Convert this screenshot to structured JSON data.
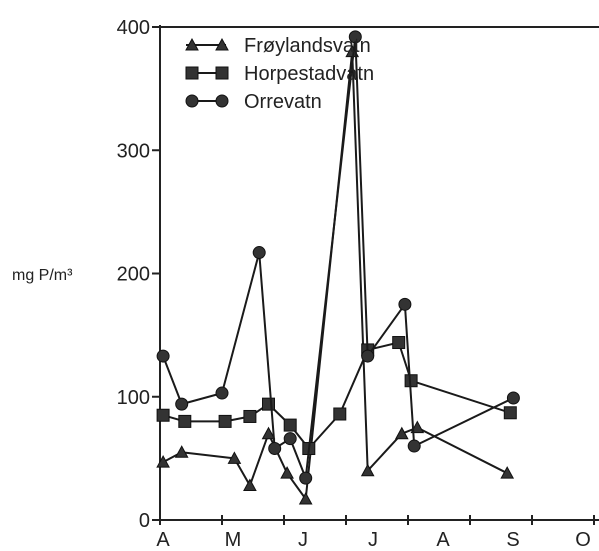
{
  "chart_data": {
    "type": "line",
    "ylabel": "mg P/m³",
    "ylim": [
      0,
      400
    ],
    "yticks": [
      0,
      100,
      200,
      300,
      400
    ],
    "month_labels": [
      "A",
      "M",
      "J",
      "J",
      "A",
      "S",
      "O"
    ],
    "x_axis": "months April–October (positions in approximate months from start of April)",
    "grid": false,
    "legend_position": "top-left",
    "series": [
      {
        "name": "Frøylandsvatn",
        "marker": "triangle",
        "points": [
          {
            "x": 0.05,
            "y": 47
          },
          {
            "x": 0.35,
            "y": 55
          },
          {
            "x": 1.2,
            "y": 50
          },
          {
            "x": 1.45,
            "y": 28
          },
          {
            "x": 1.75,
            "y": 70
          },
          {
            "x": 2.05,
            "y": 38
          },
          {
            "x": 2.35,
            "y": 17
          },
          {
            "x": 3.1,
            "y": 380
          },
          {
            "x": 3.35,
            "y": 40
          },
          {
            "x": 3.9,
            "y": 70
          },
          {
            "x": 4.15,
            "y": 75
          },
          {
            "x": 5.6,
            "y": 38
          }
        ]
      },
      {
        "name": "Horpestadvatn",
        "marker": "square",
        "points": [
          {
            "x": 0.05,
            "y": 85
          },
          {
            "x": 0.4,
            "y": 80
          },
          {
            "x": 1.05,
            "y": 80
          },
          {
            "x": 1.45,
            "y": 84
          },
          {
            "x": 1.75,
            "y": 94
          },
          {
            "x": 2.1,
            "y": 77
          },
          {
            "x": 2.4,
            "y": 58
          },
          {
            "x": 2.9,
            "y": 86
          },
          {
            "x": 3.35,
            "y": 138
          },
          {
            "x": 3.85,
            "y": 144
          },
          {
            "x": 4.05,
            "y": 113
          },
          {
            "x": 5.65,
            "y": 87
          }
        ]
      },
      {
        "name": "Orrevatn",
        "marker": "circle",
        "points": [
          {
            "x": 0.05,
            "y": 133
          },
          {
            "x": 0.35,
            "y": 94
          },
          {
            "x": 1.0,
            "y": 103
          },
          {
            "x": 1.6,
            "y": 217
          },
          {
            "x": 1.85,
            "y": 58
          },
          {
            "x": 2.1,
            "y": 66
          },
          {
            "x": 2.35,
            "y": 34
          },
          {
            "x": 3.15,
            "y": 392
          },
          {
            "x": 3.35,
            "y": 133
          },
          {
            "x": 3.95,
            "y": 175
          },
          {
            "x": 4.1,
            "y": 60
          },
          {
            "x": 5.7,
            "y": 99
          }
        ]
      }
    ]
  }
}
